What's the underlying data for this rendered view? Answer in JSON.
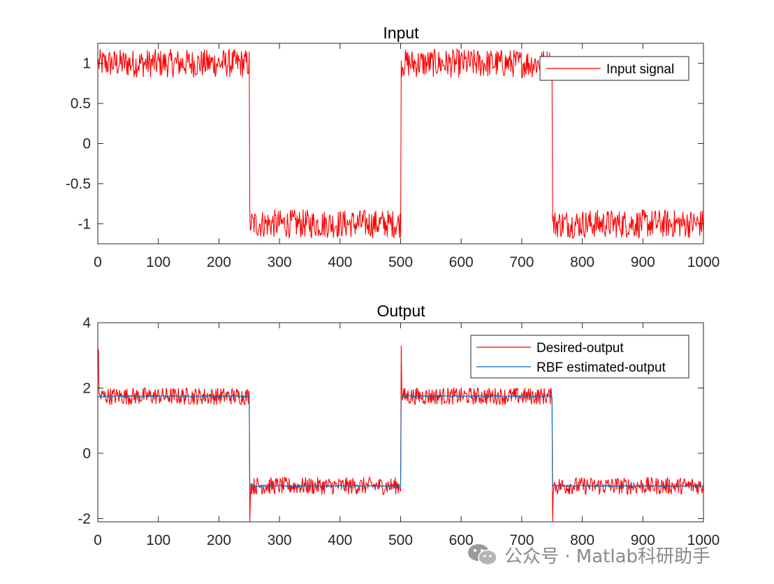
{
  "watermark": {
    "text": "公众号 · Matlab科研助手",
    "icon": "wechat-icon"
  },
  "colors": {
    "desired": "#ff0000",
    "estimated": "#0072bd",
    "axis": "#262626"
  },
  "chart_data": [
    {
      "type": "line",
      "title": "Input",
      "xlabel": "",
      "ylabel": "",
      "xlim": [
        0,
        1000
      ],
      "ylim": [
        -1.25,
        1.25
      ],
      "xticks": [
        0,
        100,
        200,
        300,
        400,
        500,
        600,
        700,
        800,
        900,
        1000
      ],
      "yticks": [
        -1,
        -0.5,
        0,
        0.5,
        1
      ],
      "xtick_labels": [
        "0",
        "100",
        "200",
        "300",
        "400",
        "500",
        "600",
        "700",
        "800",
        "900",
        "1000"
      ],
      "ytick_labels": [
        "-1",
        "-0.5",
        "0",
        "0.5",
        "1"
      ],
      "grid": false,
      "legend": {
        "placement": "top-right",
        "entries": [
          "Input signal"
        ]
      },
      "series": [
        {
          "name": "Input signal",
          "color": "#ff0000",
          "shape": "square wave +1 on 0-250 and 500-750, -1 on 250-500 and 750-1000, additive noise about ±0.2",
          "levels": [
            1,
            -1,
            1,
            -1
          ],
          "segment_bounds": [
            0,
            250,
            500,
            750,
            1000
          ],
          "noise_amplitude": 0.2,
          "x_range": [
            1,
            1000
          ]
        }
      ]
    },
    {
      "type": "line",
      "title": "Output",
      "xlabel": "",
      "ylabel": "",
      "xlim": [
        0,
        1000
      ],
      "ylim": [
        -2.1,
        4
      ],
      "xticks": [
        0,
        100,
        200,
        300,
        400,
        500,
        600,
        700,
        800,
        900,
        1000
      ],
      "yticks": [
        -2,
        0,
        2,
        4
      ],
      "xtick_labels": [
        "0",
        "100",
        "200",
        "300",
        "400",
        "500",
        "600",
        "700",
        "800",
        "900",
        "1000"
      ],
      "ytick_labels": [
        "-2",
        "0",
        "2",
        "4"
      ],
      "grid": false,
      "legend": {
        "placement": "top-right",
        "entries": [
          "Desired-output",
          "RBF estimated-output"
        ]
      },
      "series": [
        {
          "name": "Desired-output",
          "color": "#ff0000",
          "levels": [
            1.75,
            -1.0,
            1.75,
            -1.0
          ],
          "segment_bounds": [
            0,
            250,
            500,
            750,
            1000
          ],
          "noise_amplitude": 0.3,
          "spikes": [
            {
              "x": 1,
              "y": 3.2
            },
            {
              "x": 251,
              "y": -2.1
            },
            {
              "x": 501,
              "y": 3.3
            },
            {
              "x": 751,
              "y": -2.1
            }
          ],
          "x_range": [
            1,
            1000
          ]
        },
        {
          "name": "RBF estimated-output",
          "color": "#0072bd",
          "levels": [
            1.75,
            -1.0,
            1.75,
            -1.0
          ],
          "segment_bounds": [
            0,
            250,
            500,
            750,
            1000
          ],
          "noise_amplitude": 0.03,
          "x_range": [
            1,
            1000
          ]
        }
      ]
    }
  ]
}
